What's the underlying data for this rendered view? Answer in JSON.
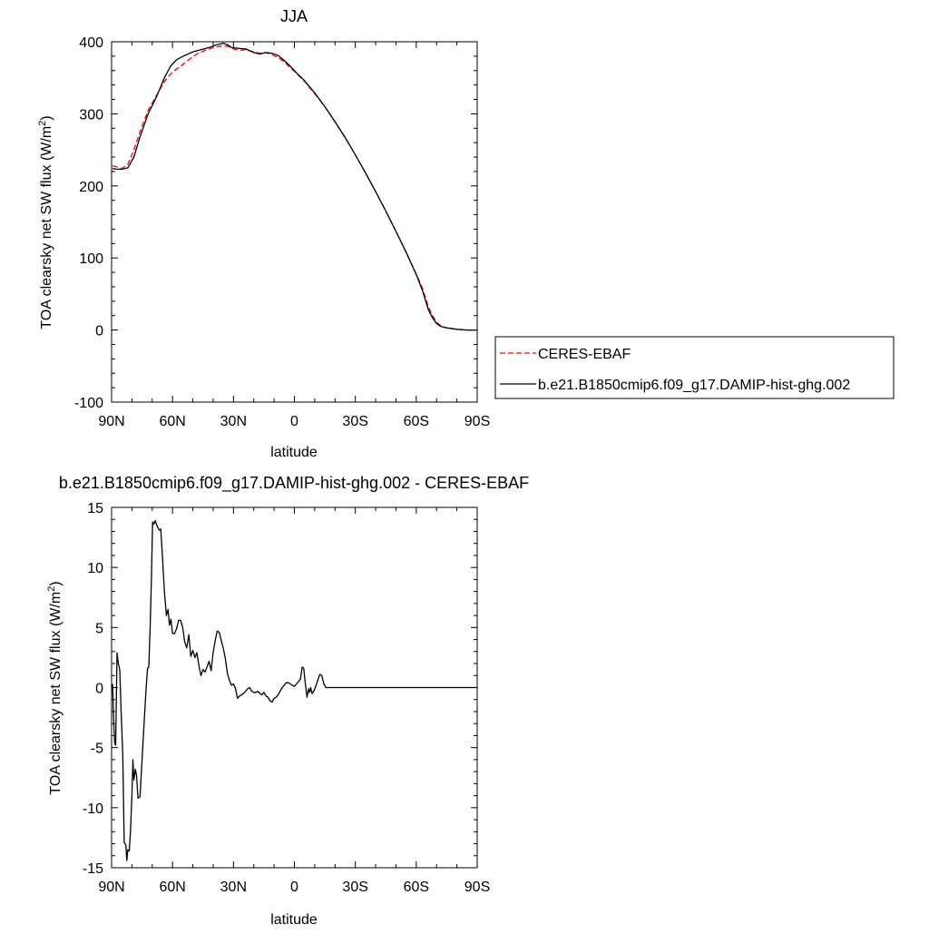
{
  "chart_data": [
    {
      "type": "line",
      "title": "JJA",
      "xlabel": "latitude",
      "ylabel_main": "TOA clearsky net SW flux (W/m",
      "ylabel_sup": "2",
      "ylabel_close": ")",
      "xlim": [
        90,
        -90
      ],
      "ylim": [
        -100,
        400
      ],
      "xticks": [
        90,
        60,
        30,
        0,
        -30,
        -60,
        -90
      ],
      "xtick_labels": [
        "90N",
        "60N",
        "30N",
        "0",
        "30S",
        "60S",
        "90S"
      ],
      "yticks": [
        -100,
        0,
        100,
        200,
        300,
        400
      ],
      "ytick_labels": [
        "-100",
        "0",
        "100",
        "200",
        "300",
        "400"
      ],
      "legend_position": "right",
      "series": [
        {
          "name": "CERES-EBAF",
          "color": "#ff0000",
          "style": "dashed",
          "points": [
            [
              89.5,
              228
            ],
            [
              87,
              226
            ],
            [
              85,
              224
            ],
            [
              82,
              230
            ],
            [
              79,
              250
            ],
            [
              76,
              275
            ],
            [
              72,
              305
            ],
            [
              68,
              325
            ],
            [
              64,
              345
            ],
            [
              60,
              358
            ],
            [
              56,
              366
            ],
            [
              52,
              375
            ],
            [
              48,
              383
            ],
            [
              44,
              388
            ],
            [
              40,
              392
            ],
            [
              36,
              394
            ],
            [
              33,
              394
            ],
            [
              30,
              390
            ],
            [
              27,
              388
            ],
            [
              24,
              389
            ],
            [
              20,
              386
            ],
            [
              17,
              384
            ],
            [
              14,
              385
            ],
            [
              11,
              382
            ],
            [
              8,
              378
            ],
            [
              5,
              372
            ],
            [
              2,
              364
            ],
            [
              0,
              359
            ],
            [
              -5,
              345
            ],
            [
              -10,
              328
            ],
            [
              -15,
              310
            ],
            [
              -20,
              289
            ],
            [
              -25,
              267
            ],
            [
              -30,
              243
            ],
            [
              -35,
              218
            ],
            [
              -40,
              192
            ],
            [
              -45,
              165
            ],
            [
              -50,
              137
            ],
            [
              -55,
              108
            ],
            [
              -60,
              78
            ],
            [
              -63,
              58
            ],
            [
              -66,
              32
            ],
            [
              -68,
              20
            ],
            [
              -70,
              11
            ],
            [
              -72,
              6
            ],
            [
              -75,
              3
            ],
            [
              -80,
              1
            ],
            [
              -85,
              0
            ],
            [
              -89.5,
              0
            ]
          ]
        },
        {
          "name": "b.e21.B1850cmip6.f09_g17.DAMIP-hist-ghg.002",
          "color": "#000000",
          "style": "solid",
          "points": [
            [
              89.5,
              224
            ],
            [
              87,
              223
            ],
            [
              85,
              223
            ],
            [
              82,
              225
            ],
            [
              79,
              240
            ],
            [
              76,
              268
            ],
            [
              72,
              300
            ],
            [
              68,
              323
            ],
            [
              64,
              350
            ],
            [
              61,
              366
            ],
            [
              58,
              375
            ],
            [
              54,
              381
            ],
            [
              50,
              386
            ],
            [
              46,
              389
            ],
            [
              42,
              392
            ],
            [
              38,
              396
            ],
            [
              35,
              398
            ],
            [
              33,
              396
            ],
            [
              31,
              392
            ],
            [
              28,
              391
            ],
            [
              24,
              390
            ],
            [
              20,
              385
            ],
            [
              17,
              383
            ],
            [
              14,
              385
            ],
            [
              11,
              384
            ],
            [
              8,
              381
            ],
            [
              5,
              374
            ],
            [
              2,
              366
            ],
            [
              0,
              360
            ],
            [
              -5,
              346
            ],
            [
              -10,
              329
            ],
            [
              -15,
              310
            ],
            [
              -20,
              289
            ],
            [
              -25,
              267
            ],
            [
              -30,
              243
            ],
            [
              -35,
              218
            ],
            [
              -40,
              192
            ],
            [
              -45,
              165
            ],
            [
              -50,
              137
            ],
            [
              -55,
              108
            ],
            [
              -60,
              77
            ],
            [
              -63,
              55
            ],
            [
              -66,
              28
            ],
            [
              -68,
              17
            ],
            [
              -70,
              9
            ],
            [
              -72,
              5
            ],
            [
              -75,
              3
            ],
            [
              -80,
              1
            ],
            [
              -85,
              0
            ],
            [
              -89.5,
              0
            ]
          ]
        }
      ]
    },
    {
      "type": "line",
      "title": "b.e21.B1850cmip6.f09_g17.DAMIP-hist-ghg.002 - CERES-EBAF",
      "xlabel": "latitude",
      "ylabel_main": "TOA clearsky net SW flux (W/m",
      "ylabel_sup": "2",
      "ylabel_close": ")",
      "xlim": [
        90,
        -90
      ],
      "ylim": [
        -15,
        15
      ],
      "xticks": [
        90,
        60,
        30,
        0,
        -30,
        -60,
        -90
      ],
      "xtick_labels": [
        "90N",
        "60N",
        "30N",
        "0",
        "30S",
        "60S",
        "90S"
      ],
      "yticks": [
        -15,
        -10,
        -5,
        0,
        5,
        10,
        15
      ],
      "ytick_labels": [
        "-15",
        "-10",
        "-5",
        "0",
        "5",
        "10",
        "15"
      ],
      "series": [
        {
          "color": "#000000",
          "style": "solid",
          "points": [
            [
              89.5,
              0.3
            ],
            [
              89,
              -2.5
            ],
            [
              88.5,
              -4.6
            ],
            [
              88,
              -4.8
            ],
            [
              87.3,
              2.9
            ],
            [
              86.7,
              2.0
            ],
            [
              86,
              1.5
            ],
            [
              85.3,
              -2.0
            ],
            [
              84.5,
              -5.5
            ],
            [
              83.8,
              -12.9
            ],
            [
              83,
              -13.1
            ],
            [
              82.5,
              -14.4
            ],
            [
              82,
              -13.5
            ],
            [
              81.3,
              -13.6
            ],
            [
              80.7,
              -12.0
            ],
            [
              80,
              -9.0
            ],
            [
              79.5,
              -6.0
            ],
            [
              79,
              -7.7
            ],
            [
              78.3,
              -6.8
            ],
            [
              77.7,
              -7.3
            ],
            [
              77,
              -9.2
            ],
            [
              76,
              -9.1
            ],
            [
              75,
              -6.0
            ],
            [
              74,
              -3.0
            ],
            [
              73,
              0.0
            ],
            [
              72.3,
              1.6
            ],
            [
              71.7,
              1.7
            ],
            [
              71,
              5.0
            ],
            [
              70.4,
              9.0
            ],
            [
              69.8,
              13.8
            ],
            [
              69.2,
              13.6
            ],
            [
              68.5,
              13.9
            ],
            [
              67.5,
              13.4
            ],
            [
              66.5,
              13.1
            ],
            [
              65.8,
              13.2
            ],
            [
              65,
              11.0
            ],
            [
              64,
              8.0
            ],
            [
              63,
              6.0
            ],
            [
              62.2,
              6.5
            ],
            [
              61.5,
              5.2
            ],
            [
              60.8,
              5.7
            ],
            [
              60,
              4.5
            ],
            [
              59,
              4.5
            ],
            [
              58,
              4.9
            ],
            [
              57,
              5.6
            ],
            [
              56,
              5.6
            ],
            [
              55,
              5.0
            ],
            [
              54,
              3.8
            ],
            [
              53,
              3.3
            ],
            [
              52,
              4.4
            ],
            [
              51,
              2.6
            ],
            [
              50,
              3.1
            ],
            [
              49,
              2.5
            ],
            [
              48,
              2.9
            ],
            [
              47,
              1.8
            ],
            [
              46,
              1.0
            ],
            [
              45,
              1.5
            ],
            [
              44,
              1.3
            ],
            [
              43,
              1.7
            ],
            [
              42,
              2.2
            ],
            [
              41,
              1.4
            ],
            [
              40,
              2.9
            ],
            [
              39,
              3.9
            ],
            [
              38,
              4.7
            ],
            [
              37,
              4.6
            ],
            [
              36,
              3.9
            ],
            [
              35,
              3.3
            ],
            [
              34,
              2.4
            ],
            [
              33,
              1.2
            ],
            [
              32,
              0.6
            ],
            [
              31,
              0.2
            ],
            [
              30,
              0.3
            ],
            [
              29,
              -0.1
            ],
            [
              28,
              -0.9
            ],
            [
              27,
              -0.7
            ],
            [
              26,
              -0.6
            ],
            [
              25,
              -0.5
            ],
            [
              24,
              -0.3
            ],
            [
              23,
              -0.1
            ],
            [
              22,
              0.0
            ],
            [
              21,
              -0.3
            ],
            [
              20,
              -0.4
            ],
            [
              19,
              -0.4
            ],
            [
              18,
              -0.3
            ],
            [
              17,
              -0.5
            ],
            [
              16,
              -0.6
            ],
            [
              15,
              -0.4
            ],
            [
              14,
              -0.7
            ],
            [
              13,
              -0.8
            ],
            [
              12,
              -1.1
            ],
            [
              11,
              -1.2
            ],
            [
              10,
              -0.9
            ],
            [
              9,
              -0.8
            ],
            [
              8,
              -0.6
            ],
            [
              7,
              -0.3
            ],
            [
              6,
              0.0
            ],
            [
              5,
              0.2
            ],
            [
              4,
              0.4
            ],
            [
              3,
              0.4
            ],
            [
              2,
              0.3
            ],
            [
              1,
              0.2
            ],
            [
              0,
              0.1
            ],
            [
              -1,
              0.3
            ],
            [
              -2,
              0.5
            ],
            [
              -3,
              0.7
            ],
            [
              -3.8,
              1.7
            ],
            [
              -4.6,
              1.6
            ],
            [
              -5.4,
              0.3
            ],
            [
              -6.2,
              -0.8
            ],
            [
              -7,
              -0.1
            ],
            [
              -7.5,
              -0.4
            ],
            [
              -8,
              0.0
            ],
            [
              -8.7,
              -0.5
            ],
            [
              -9.5,
              -0.3
            ],
            [
              -10.5,
              0.1
            ],
            [
              -11.5,
              0.6
            ],
            [
              -12.5,
              1.1
            ],
            [
              -13.5,
              1.0
            ],
            [
              -14.5,
              0.3
            ],
            [
              -15.5,
              0.0
            ],
            [
              -89.5,
              0.0
            ]
          ]
        }
      ]
    }
  ]
}
